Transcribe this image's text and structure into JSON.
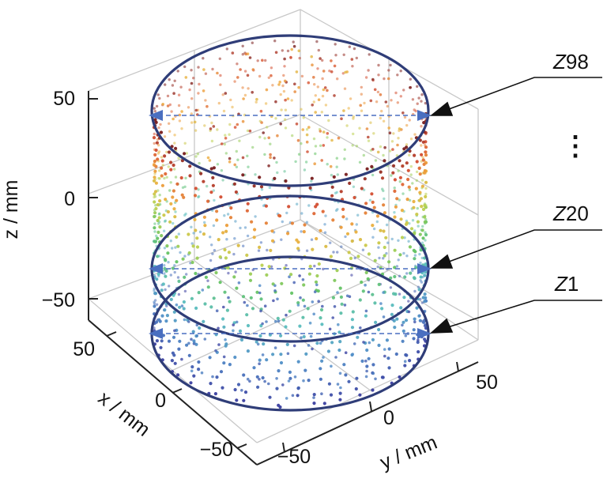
{
  "axes": {
    "z_label": "z / mm",
    "x_label": "x / mm",
    "y_label": "y / mm",
    "z_ticks": [
      "50",
      "0",
      "−50"
    ],
    "x_ticks": [
      "50",
      "0",
      "−50"
    ],
    "y_ticks": [
      "−50",
      "0",
      "50"
    ]
  },
  "slices": [
    {
      "letter": "Z",
      "number": "98"
    },
    {
      "letter": "Z",
      "number": "20"
    },
    {
      "letter": "Z",
      "number": "1"
    }
  ],
  "ellipsis": "⋮",
  "colors": {
    "ring": "#2f3d78",
    "arrow": "#4a6fc0",
    "grid": "#c8c8c8",
    "axis": "#222222",
    "gradient_low": "#3b3f9f",
    "gradient_mid": "#63c070",
    "gradient_high": "#7a1e1e"
  }
}
